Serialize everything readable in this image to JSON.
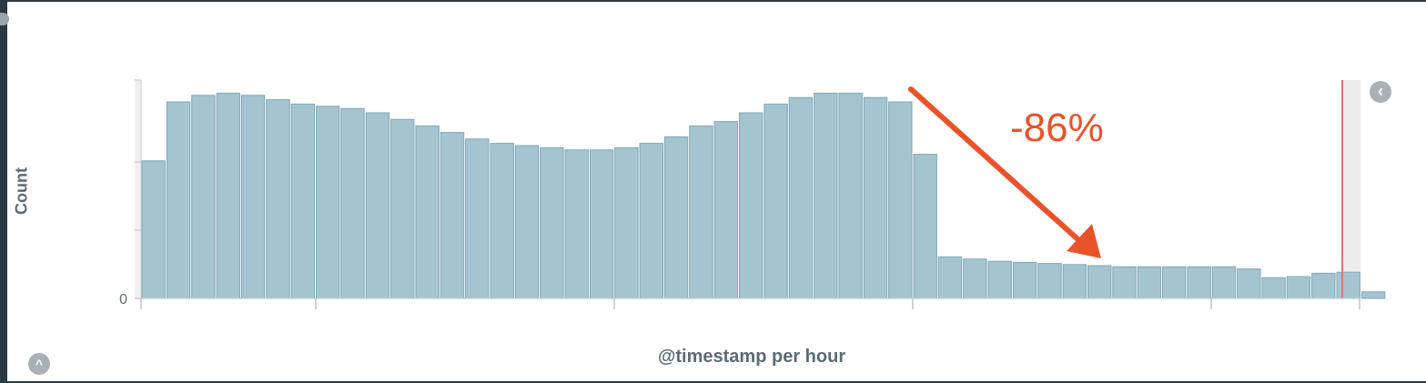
{
  "chart_data": {
    "type": "bar",
    "xlabel": "@timestamp per hour",
    "ylabel": "Count",
    "ytick_labels": [
      "0"
    ],
    "values": [
      63,
      90,
      93,
      94,
      93,
      91,
      89,
      88,
      87,
      85,
      82,
      79,
      76,
      73,
      71,
      70,
      69,
      68,
      68,
      69,
      71,
      74,
      79,
      81,
      85,
      89,
      92,
      94,
      94,
      92,
      90,
      66,
      19,
      18,
      17,
      16.5,
      16,
      15.5,
      15,
      14.5,
      14.5,
      14.5,
      14.5,
      14.5,
      13.5,
      9.5,
      10,
      11.5,
      12,
      3
    ],
    "ylim": [
      0,
      100
    ],
    "bar_color": "#a4c4d0",
    "bar_stroke": "#7fa7b8",
    "current_time_marker_color": "#e8707a"
  },
  "annotation": {
    "text": "-86%",
    "color": "#e8532a"
  },
  "controls": {
    "collapse_icon": "chevron-left-icon",
    "expand_icon": "chevron-up-icon"
  }
}
